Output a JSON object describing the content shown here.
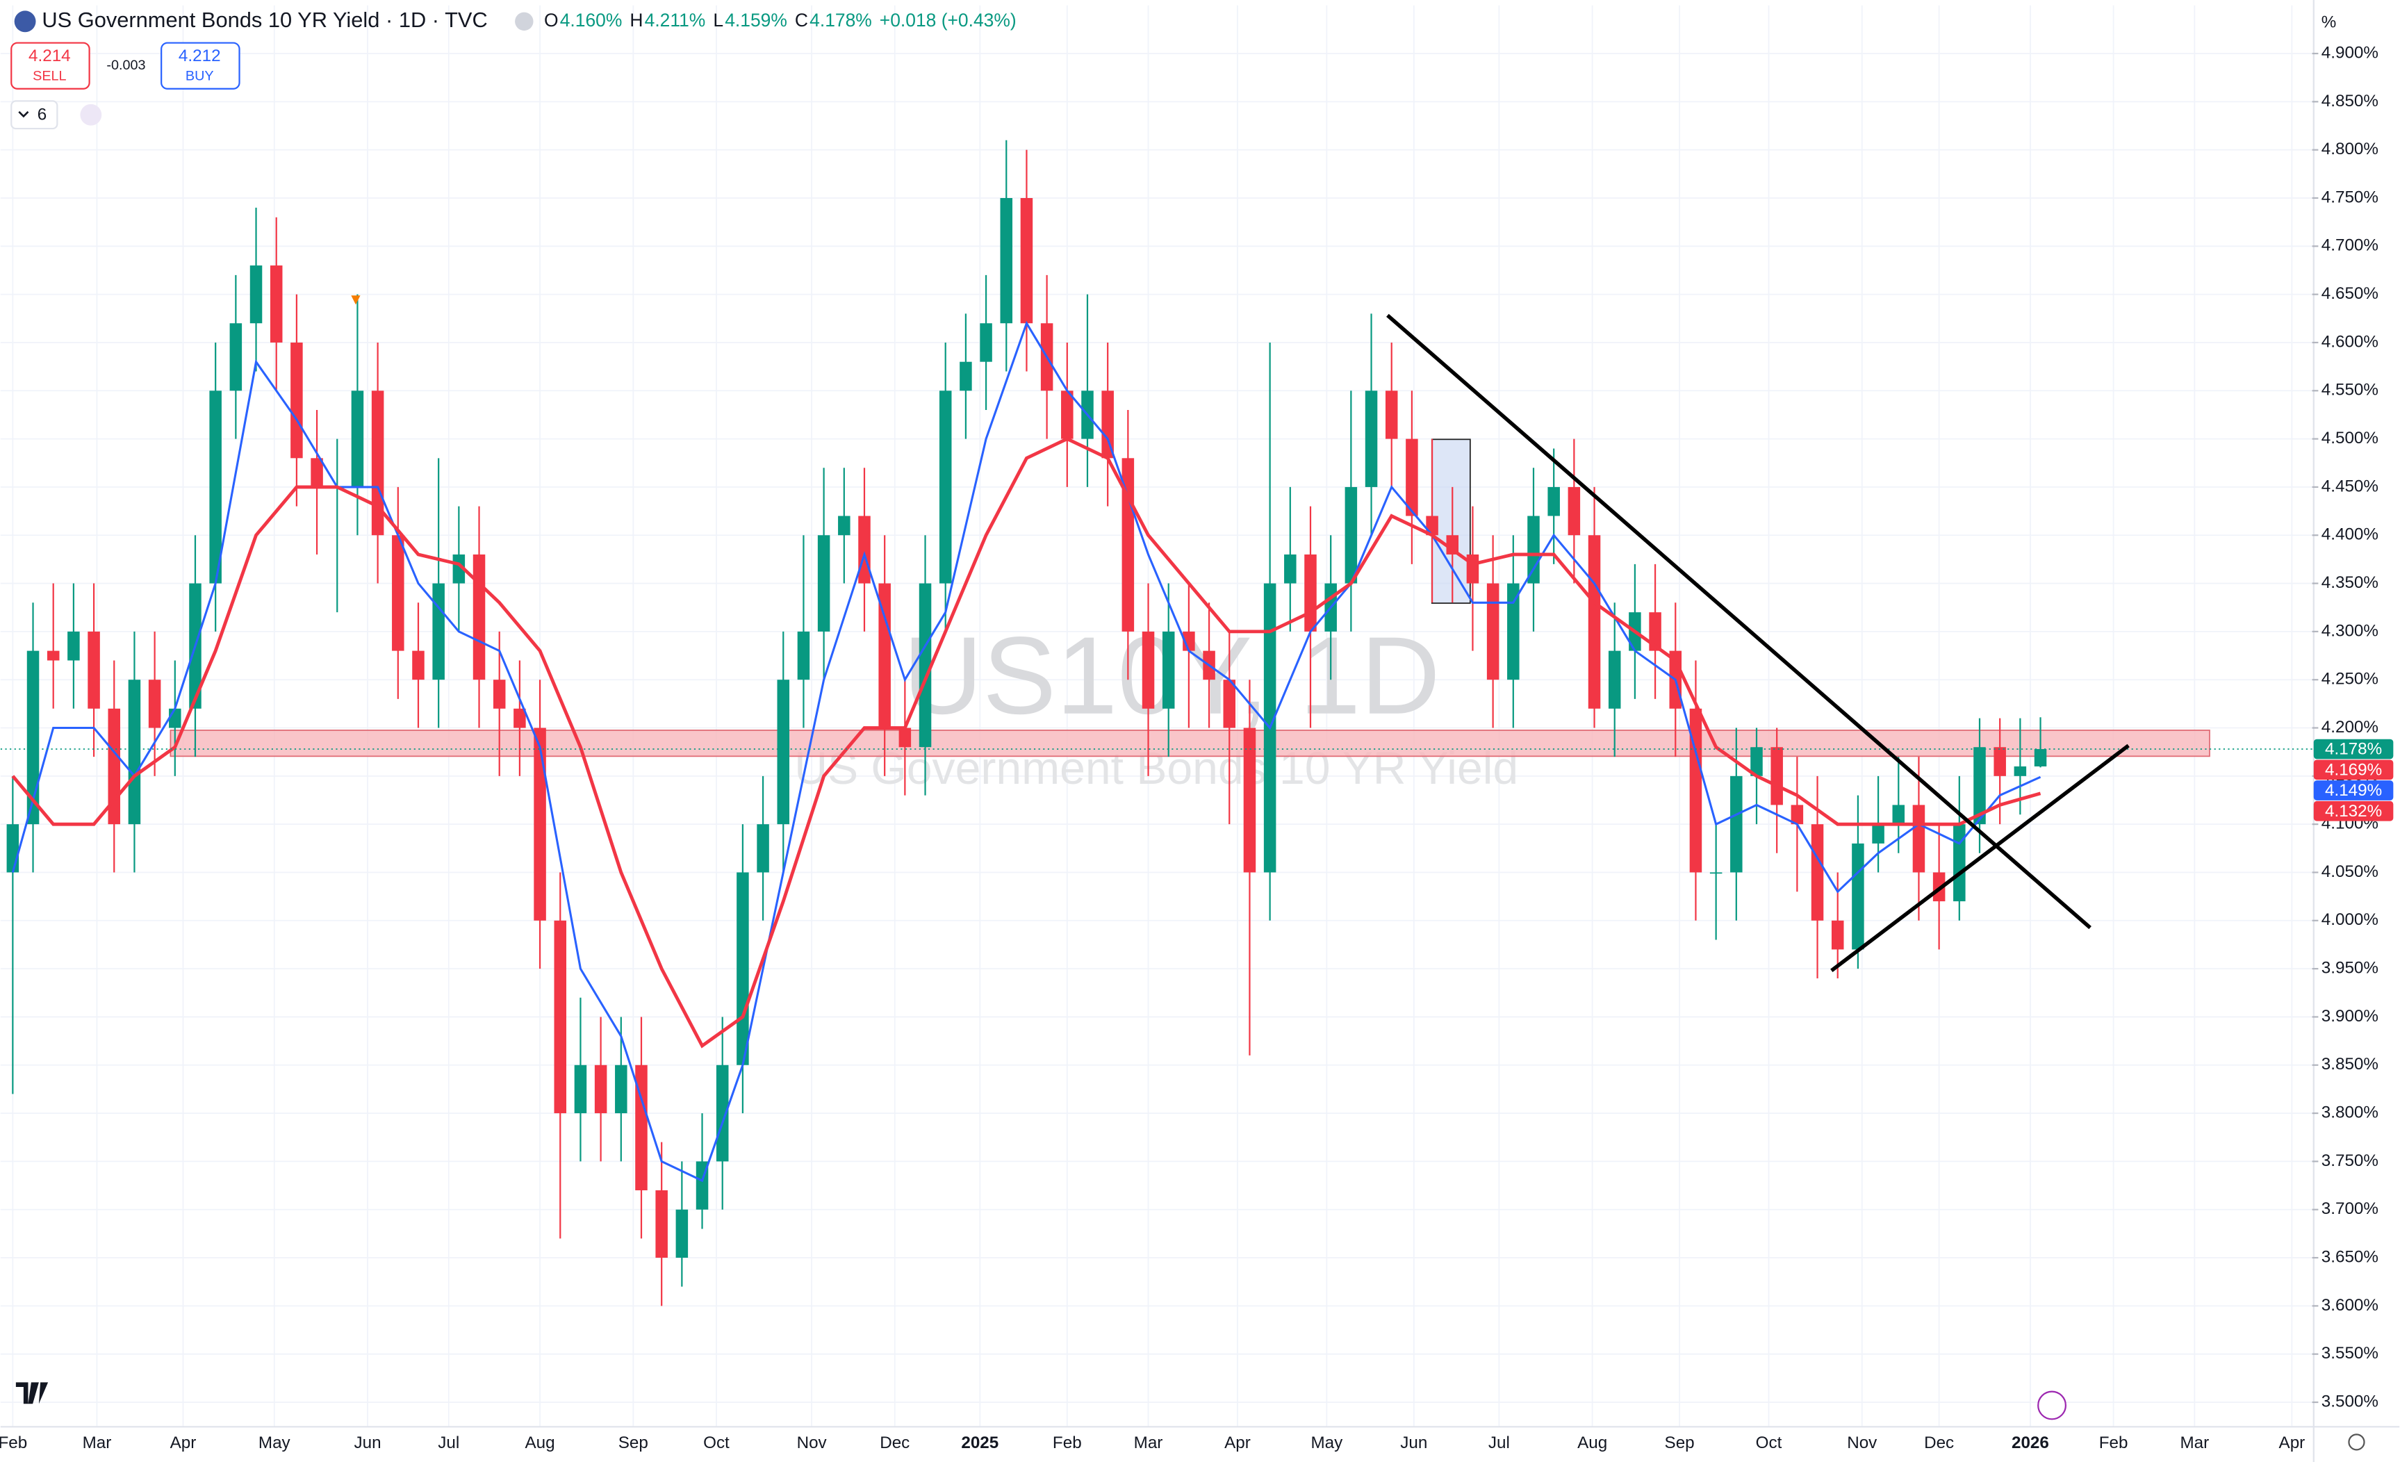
{
  "header": {
    "title": "US Government Bonds 10 YR Yield · 1D · TVC",
    "ohlc": [
      {
        "key": "O",
        "value": "4.160%"
      },
      {
        "key": "H",
        "value": "4.211%"
      },
      {
        "key": "L",
        "value": "4.159%"
      },
      {
        "key": "C",
        "value": "4.178%"
      }
    ],
    "change": "+0.018 (+0.43%)",
    "sell_price": "4.214",
    "sell": "SELL",
    "spread": "-0.003",
    "buy_price": "4.212",
    "buy": "BUY",
    "indicators_count": "6"
  },
  "watermark": {
    "symbol": "US10Y, 1D",
    "name": "US Government Bonds 10 YR Yield"
  },
  "chart_data": {
    "type": "candlestick",
    "y_unit": "%",
    "xlim": [
      -0.6,
      113.4
    ],
    "ylim": [
      3.475,
      4.95
    ],
    "xticks": [
      {
        "value": 0,
        "label": "Feb"
      },
      {
        "value": 4.15,
        "label": "Mar"
      },
      {
        "value": 8.4,
        "label": "Apr"
      },
      {
        "value": 12.9,
        "label": "May"
      },
      {
        "value": 17.5,
        "label": "Jun"
      },
      {
        "value": 21.5,
        "label": "Jul"
      },
      {
        "value": 26,
        "label": "Aug"
      },
      {
        "value": 30.6,
        "label": "Sep"
      },
      {
        "value": 34.7,
        "label": "Oct"
      },
      {
        "value": 39.4,
        "label": "Nov"
      },
      {
        "value": 43.5,
        "label": "Dec"
      },
      {
        "value": 47.7,
        "label": "2025"
      },
      {
        "value": 52,
        "label": "Feb"
      },
      {
        "value": 56,
        "label": "Mar"
      },
      {
        "value": 60.4,
        "label": "Apr"
      },
      {
        "value": 64.8,
        "label": "May"
      },
      {
        "value": 69.1,
        "label": "Jun"
      },
      {
        "value": 73.3,
        "label": "Jul"
      },
      {
        "value": 77.9,
        "label": "Aug"
      },
      {
        "value": 82.2,
        "label": "Sep"
      },
      {
        "value": 86.6,
        "label": "Oct"
      },
      {
        "value": 91.2,
        "label": "Nov"
      },
      {
        "value": 95,
        "label": "Dec"
      },
      {
        "value": 99.5,
        "label": "2026"
      },
      {
        "value": 103.6,
        "label": "Feb"
      },
      {
        "value": 107.6,
        "label": "Mar"
      },
      {
        "value": 112.4,
        "label": "Apr"
      }
    ],
    "yticks": [
      {
        "value": 3.5,
        "label": "3.500%"
      },
      {
        "value": 3.55,
        "label": "3.550%"
      },
      {
        "value": 3.6,
        "label": "3.600%"
      },
      {
        "value": 3.65,
        "label": "3.650%"
      },
      {
        "value": 3.7,
        "label": "3.700%"
      },
      {
        "value": 3.75,
        "label": "3.750%"
      },
      {
        "value": 3.8,
        "label": "3.800%"
      },
      {
        "value": 3.85,
        "label": "3.850%"
      },
      {
        "value": 3.9,
        "label": "3.900%"
      },
      {
        "value": 3.95,
        "label": "3.950%"
      },
      {
        "value": 4.0,
        "label": "4.000%"
      },
      {
        "value": 4.05,
        "label": "4.050%"
      },
      {
        "value": 4.1,
        "label": "4.100%"
      },
      {
        "value": 4.15,
        "label": "4.150%"
      },
      {
        "value": 4.2,
        "label": "4.200%"
      },
      {
        "value": 4.25,
        "label": "4.250%"
      },
      {
        "value": 4.3,
        "label": "4.300%"
      },
      {
        "value": 4.35,
        "label": "4.350%"
      },
      {
        "value": 4.4,
        "label": "4.400%"
      },
      {
        "value": 4.45,
        "label": "4.450%"
      },
      {
        "value": 4.5,
        "label": "4.500%"
      },
      {
        "value": 4.55,
        "label": "4.550%"
      },
      {
        "value": 4.6,
        "label": "4.600%"
      },
      {
        "value": 4.65,
        "label": "4.650%"
      },
      {
        "value": 4.7,
        "label": "4.700%"
      },
      {
        "value": 4.75,
        "label": "4.750%"
      },
      {
        "value": 4.8,
        "label": "4.800%"
      },
      {
        "value": 4.85,
        "label": "4.850%"
      },
      {
        "value": 4.9,
        "label": "4.900%"
      }
    ],
    "up_color": "#089981",
    "down_color": "#f23645",
    "x": [
      0,
      1,
      2,
      3,
      4,
      5,
      6,
      7,
      8,
      9,
      10,
      11,
      12,
      13,
      14,
      15,
      16,
      17,
      18,
      19,
      20,
      21,
      22,
      23,
      24,
      25,
      26,
      27,
      28,
      29,
      30,
      31,
      32,
      33,
      34,
      35,
      36,
      37,
      38,
      39,
      40,
      41,
      42,
      43,
      44,
      45,
      46,
      47,
      48,
      49,
      50,
      51,
      52,
      53,
      54,
      55,
      56,
      57,
      58,
      59,
      60,
      61,
      62,
      63,
      64,
      65,
      66,
      67,
      68,
      69,
      70,
      71,
      72,
      73,
      74,
      75,
      76,
      77,
      78,
      79,
      80,
      81,
      82,
      83,
      84,
      85,
      86,
      87,
      88,
      89,
      90,
      91,
      92,
      93,
      94,
      95,
      96,
      97,
      98,
      99,
      100
    ],
    "open": [
      4.05,
      4.1,
      4.28,
      4.27,
      4.3,
      4.22,
      4.1,
      4.25,
      4.2,
      4.22,
      4.35,
      4.55,
      4.62,
      4.68,
      4.6,
      4.48,
      4.45,
      4.45,
      4.55,
      4.4,
      4.28,
      4.25,
      4.35,
      4.38,
      4.25,
      4.22,
      4.2,
      4.0,
      3.8,
      3.85,
      3.8,
      3.85,
      3.72,
      3.65,
      3.7,
      3.75,
      3.85,
      4.05,
      4.1,
      4.25,
      4.3,
      4.4,
      4.42,
      4.35,
      4.2,
      4.18,
      4.35,
      4.55,
      4.58,
      4.62,
      4.75,
      4.62,
      4.55,
      4.5,
      4.55,
      4.48,
      4.3,
      4.22,
      4.3,
      4.28,
      4.25,
      4.2,
      4.05,
      4.35,
      4.38,
      4.3,
      4.35,
      4.45,
      4.55,
      4.5,
      4.42,
      4.4,
      4.38,
      4.35,
      4.25,
      4.35,
      4.42,
      4.45,
      4.4,
      4.22,
      4.28,
      4.32,
      4.28,
      4.22,
      4.05,
      4.05,
      4.15,
      4.18,
      4.12,
      4.1,
      4.0,
      3.97,
      4.08,
      4.1,
      4.12,
      4.05,
      4.02,
      4.1,
      4.18,
      4.15,
      4.16
    ],
    "high": [
      4.15,
      4.33,
      4.35,
      4.35,
      4.35,
      4.27,
      4.3,
      4.3,
      4.27,
      4.4,
      4.6,
      4.67,
      4.74,
      4.73,
      4.65,
      4.53,
      4.5,
      4.65,
      4.6,
      4.45,
      4.33,
      4.48,
      4.43,
      4.43,
      4.3,
      4.27,
      4.25,
      4.05,
      3.92,
      3.9,
      3.9,
      3.9,
      3.77,
      3.75,
      3.8,
      3.9,
      4.1,
      4.15,
      4.3,
      4.4,
      4.47,
      4.47,
      4.47,
      4.4,
      4.25,
      4.4,
      4.6,
      4.63,
      4.67,
      4.81,
      4.8,
      4.67,
      4.6,
      4.65,
      4.6,
      4.53,
      4.35,
      4.35,
      4.35,
      4.33,
      4.3,
      4.25,
      4.6,
      4.45,
      4.43,
      4.4,
      4.55,
      4.63,
      4.6,
      4.55,
      4.5,
      4.45,
      4.43,
      4.4,
      4.4,
      4.47,
      4.49,
      4.5,
      4.45,
      4.33,
      4.37,
      4.37,
      4.33,
      4.27,
      4.1,
      4.2,
      4.2,
      4.2,
      4.17,
      4.15,
      4.05,
      4.13,
      4.15,
      4.17,
      4.17,
      4.1,
      4.15,
      4.21,
      4.21,
      4.21,
      4.211
    ],
    "low": [
      3.82,
      4.05,
      4.22,
      4.22,
      4.17,
      4.05,
      4.05,
      4.15,
      4.15,
      4.17,
      4.3,
      4.5,
      4.57,
      4.55,
      4.43,
      4.38,
      4.32,
      4.4,
      4.35,
      4.23,
      4.2,
      4.2,
      4.3,
      4.2,
      4.15,
      4.15,
      3.95,
      3.67,
      3.75,
      3.75,
      3.75,
      3.67,
      3.6,
      3.62,
      3.68,
      3.7,
      3.8,
      4.0,
      4.05,
      4.2,
      4.25,
      4.35,
      4.3,
      4.15,
      4.13,
      4.13,
      4.3,
      4.5,
      4.53,
      4.57,
      4.57,
      4.5,
      4.45,
      4.45,
      4.43,
      4.25,
      4.15,
      4.17,
      4.2,
      4.2,
      4.1,
      3.86,
      4.0,
      4.3,
      4.2,
      4.25,
      4.3,
      4.4,
      4.45,
      4.37,
      4.33,
      4.33,
      4.28,
      4.2,
      4.2,
      4.3,
      4.37,
      4.35,
      4.2,
      4.17,
      4.23,
      4.23,
      4.17,
      4.0,
      3.98,
      4.0,
      4.1,
      4.07,
      4.03,
      3.94,
      3.94,
      3.95,
      4.05,
      4.07,
      4.0,
      3.97,
      4.0,
      4.07,
      4.1,
      4.11,
      4.159
    ],
    "close": [
      4.1,
      4.28,
      4.27,
      4.3,
      4.22,
      4.1,
      4.25,
      4.2,
      4.22,
      4.35,
      4.55,
      4.62,
      4.68,
      4.6,
      4.48,
      4.45,
      4.45,
      4.55,
      4.4,
      4.28,
      4.25,
      4.35,
      4.38,
      4.25,
      4.22,
      4.2,
      4.0,
      3.8,
      3.85,
      3.8,
      3.85,
      3.72,
      3.65,
      3.7,
      3.75,
      3.85,
      4.05,
      4.1,
      4.25,
      4.3,
      4.4,
      4.42,
      4.35,
      4.2,
      4.18,
      4.35,
      4.55,
      4.58,
      4.62,
      4.75,
      4.62,
      4.55,
      4.5,
      4.55,
      4.48,
      4.3,
      4.22,
      4.3,
      4.28,
      4.25,
      4.2,
      4.05,
      4.35,
      4.38,
      4.3,
      4.35,
      4.45,
      4.55,
      4.5,
      4.42,
      4.4,
      4.38,
      4.35,
      4.25,
      4.35,
      4.42,
      4.45,
      4.4,
      4.22,
      4.28,
      4.32,
      4.28,
      4.22,
      4.05,
      4.05,
      4.15,
      4.18,
      4.12,
      4.1,
      4.0,
      3.97,
      4.08,
      4.1,
      4.12,
      4.05,
      4.02,
      4.1,
      4.18,
      4.15,
      4.16,
      4.178
    ],
    "lines": [
      {
        "color": "#2962ff",
        "x": [
          0,
          2,
          4,
          6,
          8,
          10,
          12,
          14,
          16,
          18,
          20,
          22,
          24,
          26,
          28,
          30,
          32,
          34,
          36,
          38,
          40,
          42,
          44,
          46,
          48,
          50,
          52,
          54,
          56,
          58,
          60,
          62,
          64,
          66,
          68,
          70,
          72,
          74,
          76,
          78,
          80,
          82,
          84,
          86,
          88,
          90,
          92,
          94,
          96,
          98,
          100
        ],
        "values": [
          4.05,
          4.2,
          4.2,
          4.15,
          4.22,
          4.35,
          4.58,
          4.52,
          4.45,
          4.45,
          4.35,
          4.3,
          4.28,
          4.18,
          3.95,
          3.88,
          3.75,
          3.73,
          3.85,
          4.05,
          4.25,
          4.38,
          4.25,
          4.32,
          4.5,
          4.62,
          4.55,
          4.5,
          4.38,
          4.28,
          4.25,
          4.2,
          4.3,
          4.35,
          4.45,
          4.4,
          4.33,
          4.33,
          4.4,
          4.35,
          4.28,
          4.25,
          4.1,
          4.12,
          4.1,
          4.03,
          4.07,
          4.1,
          4.08,
          4.13,
          4.149
        ]
      },
      {
        "color": "#f23645",
        "x": [
          0,
          2,
          4,
          6,
          8,
          10,
          12,
          14,
          16,
          18,
          20,
          22,
          24,
          26,
          28,
          30,
          32,
          34,
          36,
          38,
          40,
          42,
          44,
          46,
          48,
          50,
          52,
          54,
          56,
          58,
          60,
          62,
          64,
          66,
          68,
          70,
          72,
          74,
          76,
          78,
          80,
          82,
          84,
          86,
          88,
          90,
          92,
          94,
          96,
          98,
          100
        ],
        "values": [
          4.15,
          4.1,
          4.1,
          4.15,
          4.18,
          4.28,
          4.4,
          4.45,
          4.45,
          4.43,
          4.38,
          4.37,
          4.33,
          4.28,
          4.18,
          4.05,
          3.95,
          3.87,
          3.9,
          4.02,
          4.15,
          4.2,
          4.2,
          4.3,
          4.4,
          4.48,
          4.5,
          4.48,
          4.4,
          4.35,
          4.3,
          4.3,
          4.32,
          4.35,
          4.42,
          4.4,
          4.37,
          4.38,
          4.38,
          4.33,
          4.3,
          4.27,
          4.18,
          4.15,
          4.13,
          4.1,
          4.1,
          4.1,
          4.1,
          4.12,
          4.132
        ]
      }
    ],
    "price_labels": [
      {
        "value": 4.178,
        "label": "4.178%",
        "color": "#089981"
      },
      {
        "value": 4.169,
        "label": "4.169%",
        "color": "#f23645"
      },
      {
        "value": 4.149,
        "label": "4.149%",
        "color": "#2962ff"
      },
      {
        "value": 4.132,
        "label": "4.132%",
        "color": "#f23645"
      }
    ]
  }
}
